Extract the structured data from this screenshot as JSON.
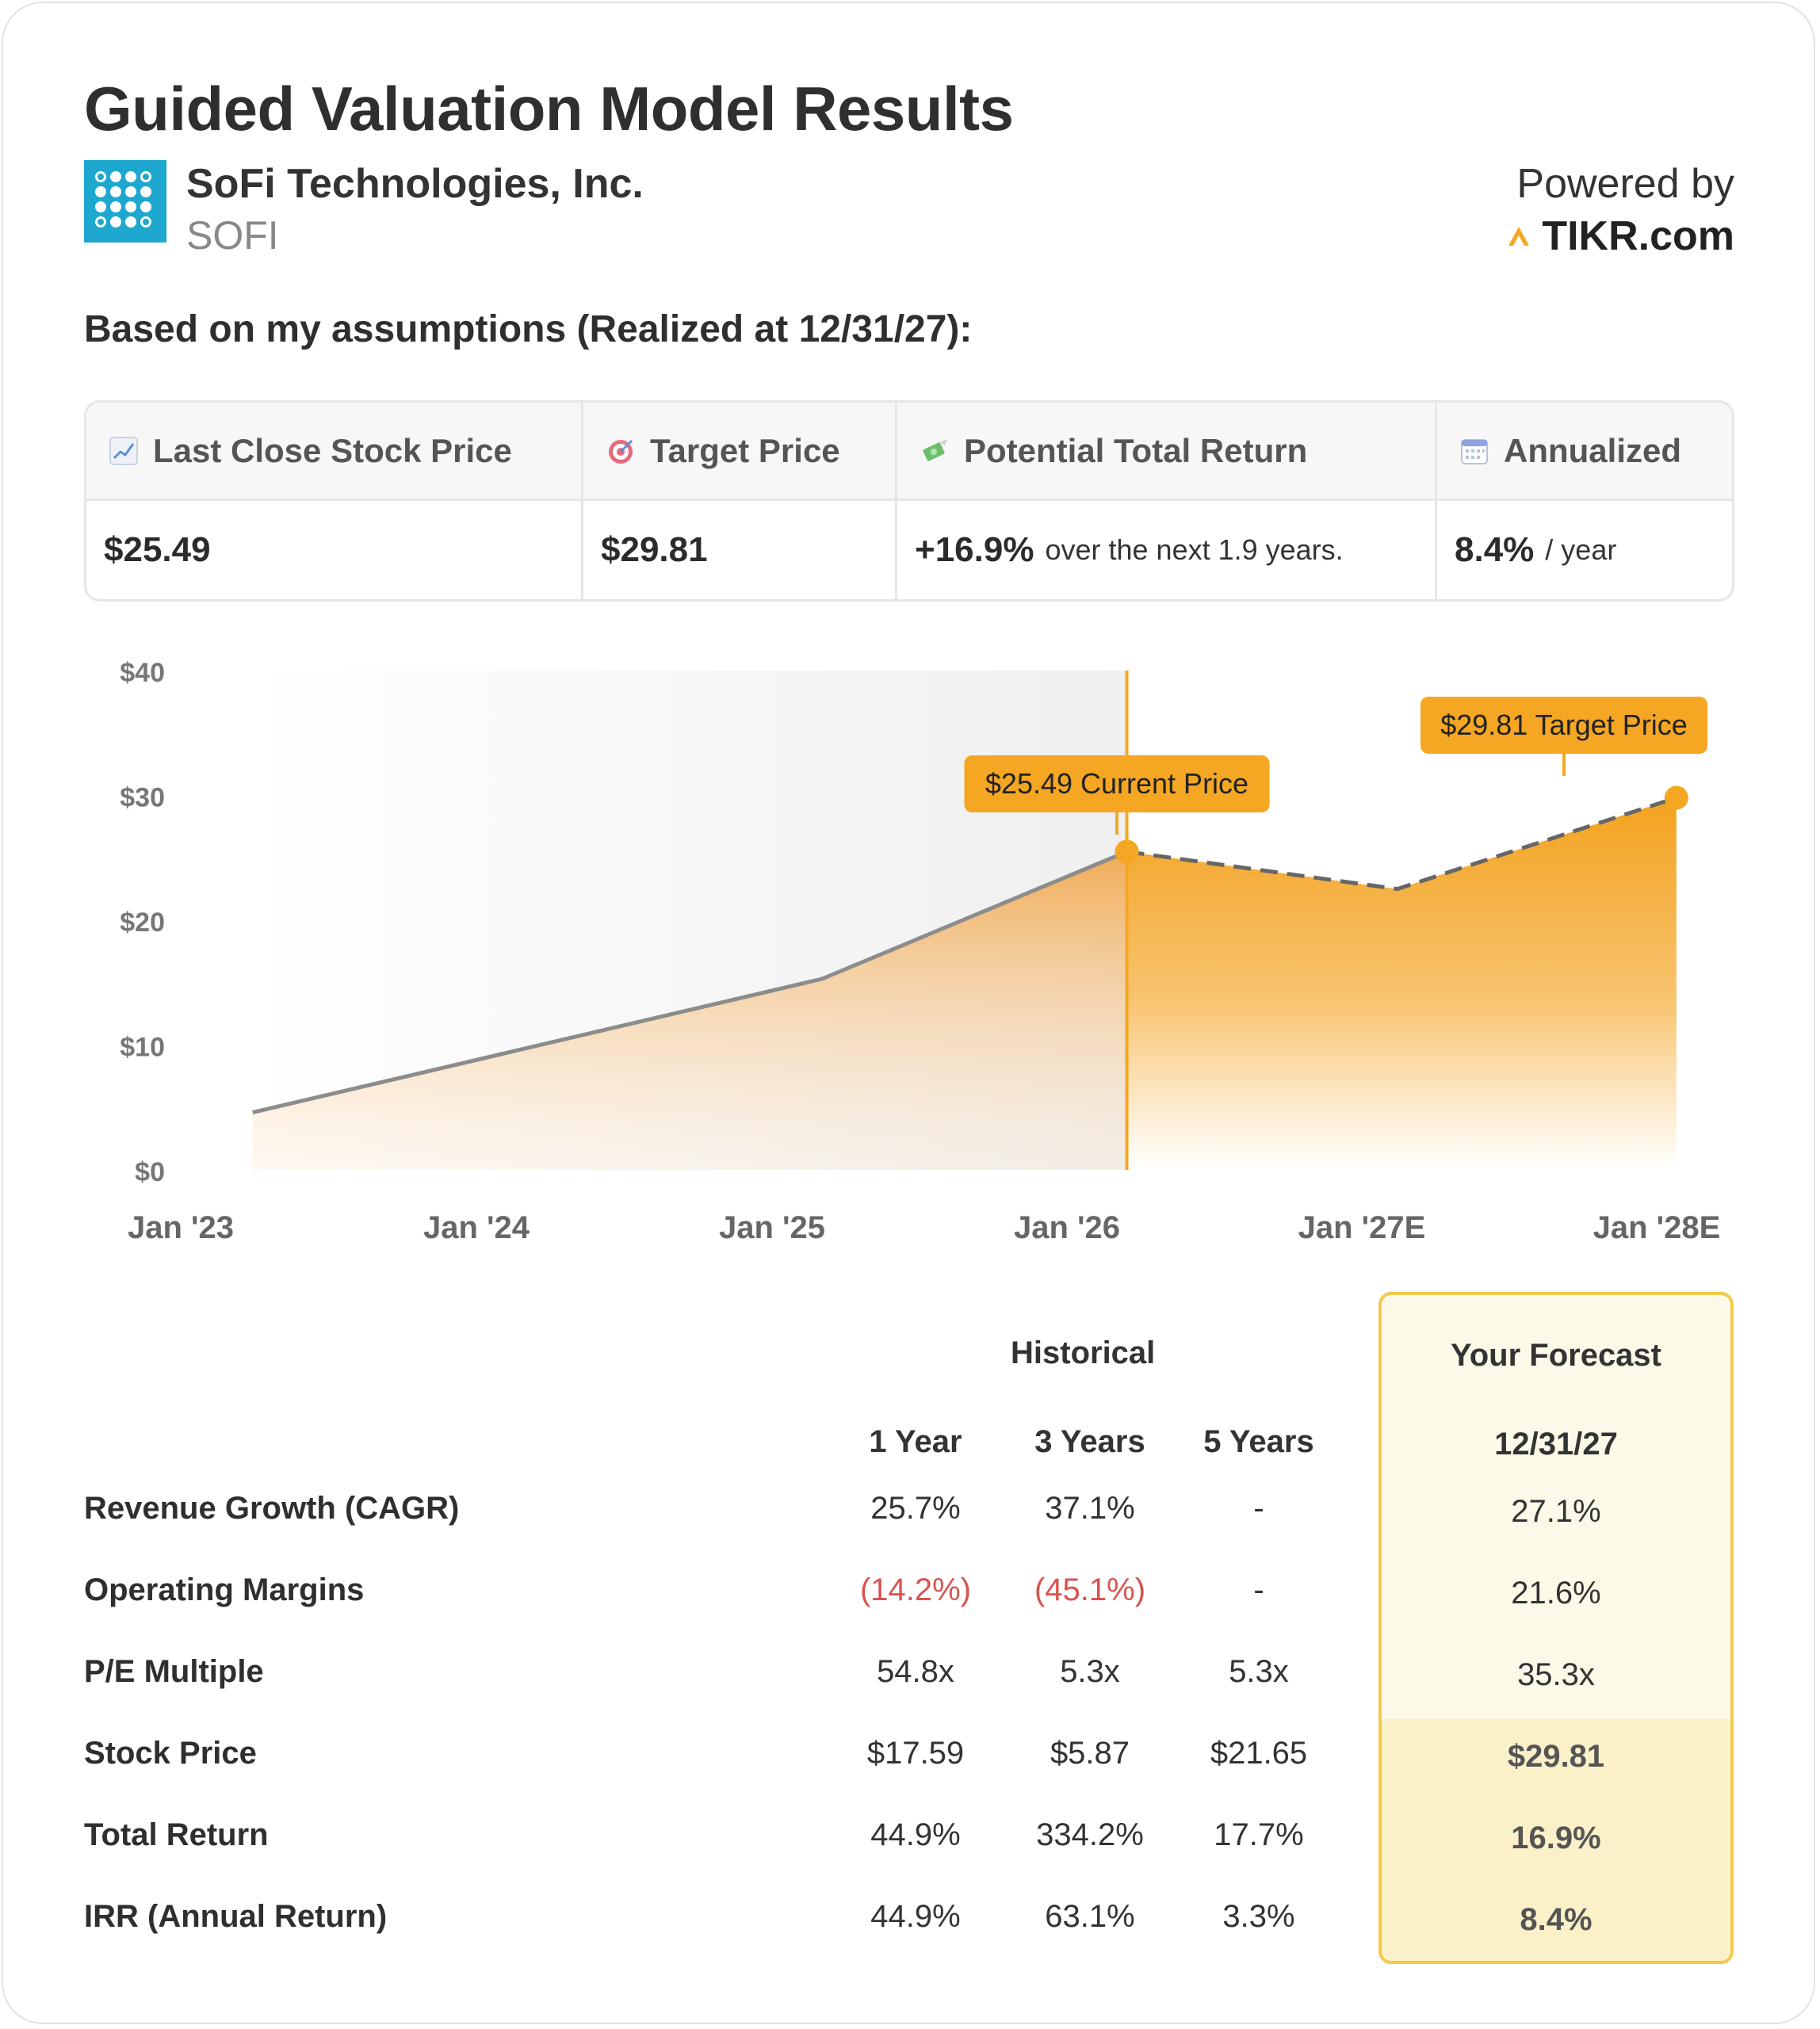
{
  "header": {
    "title": "Guided Valuation Model Results",
    "company": "SoFi Technologies, Inc.",
    "ticker": "SOFI",
    "powered_by": "Powered by",
    "brand": "TIKR.com"
  },
  "assumptions_text": "Based on my assumptions (Realized at 12/31/27):",
  "kpis": {
    "last_close_label": "Last Close Stock Price",
    "last_close_value": "$25.49",
    "target_label": "Target Price",
    "target_value": "$29.81",
    "return_label": "Potential Total Return",
    "return_value": "+16.9%",
    "return_note": "over the next 1.9 years.",
    "annualized_label": "Annualized",
    "annualized_value": "8.4%",
    "annualized_note": "/ year"
  },
  "chart_data": {
    "type": "area",
    "y_ticks": [
      "$40",
      "$30",
      "$20",
      "$10",
      "$0"
    ],
    "ylim": [
      0,
      40
    ],
    "x_ticks": [
      "Jan '23",
      "Jan '24",
      "Jan '25",
      "Jan '26",
      "Jan '27E",
      "Jan '28E"
    ],
    "historical": [
      {
        "x": 2023.13,
        "y": 4.6
      },
      {
        "x": 2025.13,
        "y": 15.3
      },
      {
        "x": 2026.2,
        "y": 25.49
      }
    ],
    "forecast": [
      {
        "x": 2026.2,
        "y": 25.49
      },
      {
        "x": 2027.15,
        "y": 22.5
      },
      {
        "x": 2028.13,
        "y": 29.81
      }
    ],
    "annotations": {
      "current_label": "$25.49 Current Price",
      "target_label": "$29.81 Target Price"
    },
    "colors": {
      "accent": "#f5a623",
      "historical_line": "#8c8c8c",
      "forecast_line": "#666666"
    }
  },
  "table": {
    "historical_header": "Historical",
    "forecast_header": "Your Forecast",
    "columns": [
      "1 Year",
      "3 Years",
      "5 Years"
    ],
    "forecast_column": "12/31/27",
    "rows": [
      {
        "label": "Revenue Growth (CAGR)",
        "y1": "25.7%",
        "y3": "37.1%",
        "y5": "-",
        "forecast": "27.1%"
      },
      {
        "label": "Operating Margins",
        "y1": "(14.2%)",
        "y3": "(45.1%)",
        "y5": "-",
        "forecast": "21.6%"
      },
      {
        "label": "P/E Multiple",
        "y1": "54.8x",
        "y3": "5.3x",
        "y5": "5.3x",
        "forecast": "35.3x"
      },
      {
        "label": "Stock Price",
        "y1": "$17.59",
        "y3": "$5.87",
        "y5": "$21.65",
        "forecast": "$29.81"
      },
      {
        "label": "Total Return",
        "y1": "44.9%",
        "y3": "334.2%",
        "y5": "17.7%",
        "forecast": "16.9%"
      },
      {
        "label": "IRR (Annual Return)",
        "y1": "44.9%",
        "y3": "63.1%",
        "y5": "3.3%",
        "forecast": "8.4%"
      }
    ]
  }
}
